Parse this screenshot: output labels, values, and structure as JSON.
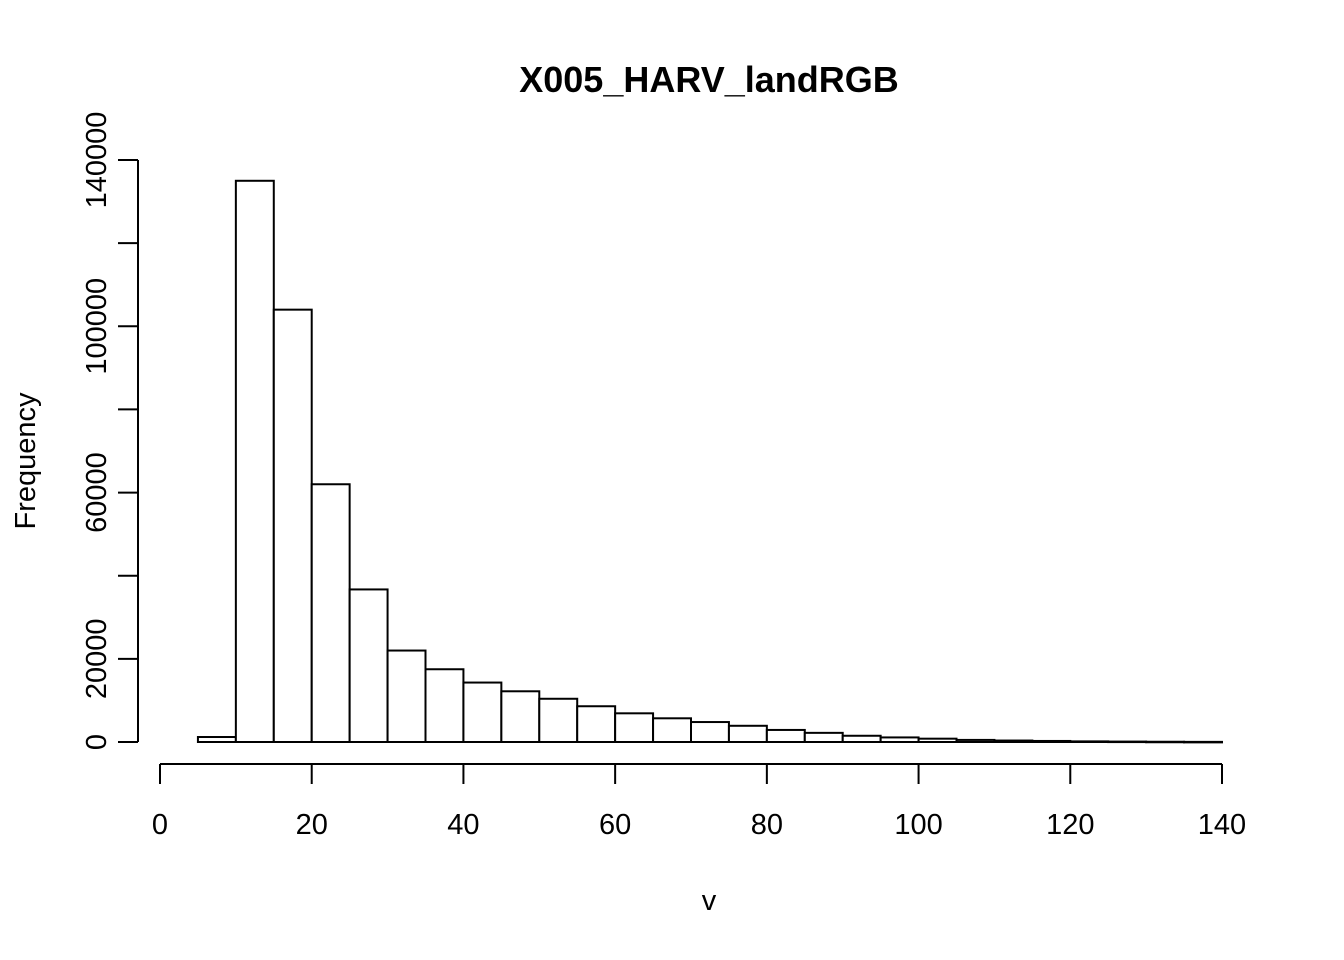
{
  "chart_data": {
    "type": "bar",
    "title": "X005_HARV_landRGB",
    "xlabel": "v",
    "ylabel": "Frequency",
    "xlim": [
      0,
      140
    ],
    "ylim": [
      0,
      140000
    ],
    "grid": false,
    "x_ticks": [
      "0",
      "20",
      "40",
      "60",
      "80",
      "100",
      "120",
      "140"
    ],
    "y_ticks": [
      "0",
      "20000",
      "60000",
      "100000",
      "140000"
    ],
    "bin_width": 5,
    "bins": [
      {
        "start": 5,
        "end": 10,
        "count": 1200
      },
      {
        "start": 10,
        "end": 15,
        "count": 135000
      },
      {
        "start": 15,
        "end": 20,
        "count": 104000
      },
      {
        "start": 20,
        "end": 25,
        "count": 62000
      },
      {
        "start": 25,
        "end": 30,
        "count": 36700
      },
      {
        "start": 30,
        "end": 35,
        "count": 22000
      },
      {
        "start": 35,
        "end": 40,
        "count": 17500
      },
      {
        "start": 40,
        "end": 45,
        "count": 14300
      },
      {
        "start": 45,
        "end": 50,
        "count": 12200
      },
      {
        "start": 50,
        "end": 55,
        "count": 10400
      },
      {
        "start": 55,
        "end": 60,
        "count": 8600
      },
      {
        "start": 60,
        "end": 65,
        "count": 6900
      },
      {
        "start": 65,
        "end": 70,
        "count": 5700
      },
      {
        "start": 70,
        "end": 75,
        "count": 4800
      },
      {
        "start": 75,
        "end": 80,
        "count": 3900
      },
      {
        "start": 80,
        "end": 85,
        "count": 2900
      },
      {
        "start": 85,
        "end": 90,
        "count": 2200
      },
      {
        "start": 90,
        "end": 95,
        "count": 1500
      },
      {
        "start": 95,
        "end": 100,
        "count": 1100
      },
      {
        "start": 100,
        "end": 105,
        "count": 800
      },
      {
        "start": 105,
        "end": 110,
        "count": 500
      },
      {
        "start": 110,
        "end": 115,
        "count": 350
      },
      {
        "start": 115,
        "end": 120,
        "count": 250
      },
      {
        "start": 120,
        "end": 125,
        "count": 150
      },
      {
        "start": 125,
        "end": 130,
        "count": 100
      },
      {
        "start": 130,
        "end": 135,
        "count": 60
      },
      {
        "start": 135,
        "end": 140,
        "count": 30
      }
    ]
  }
}
